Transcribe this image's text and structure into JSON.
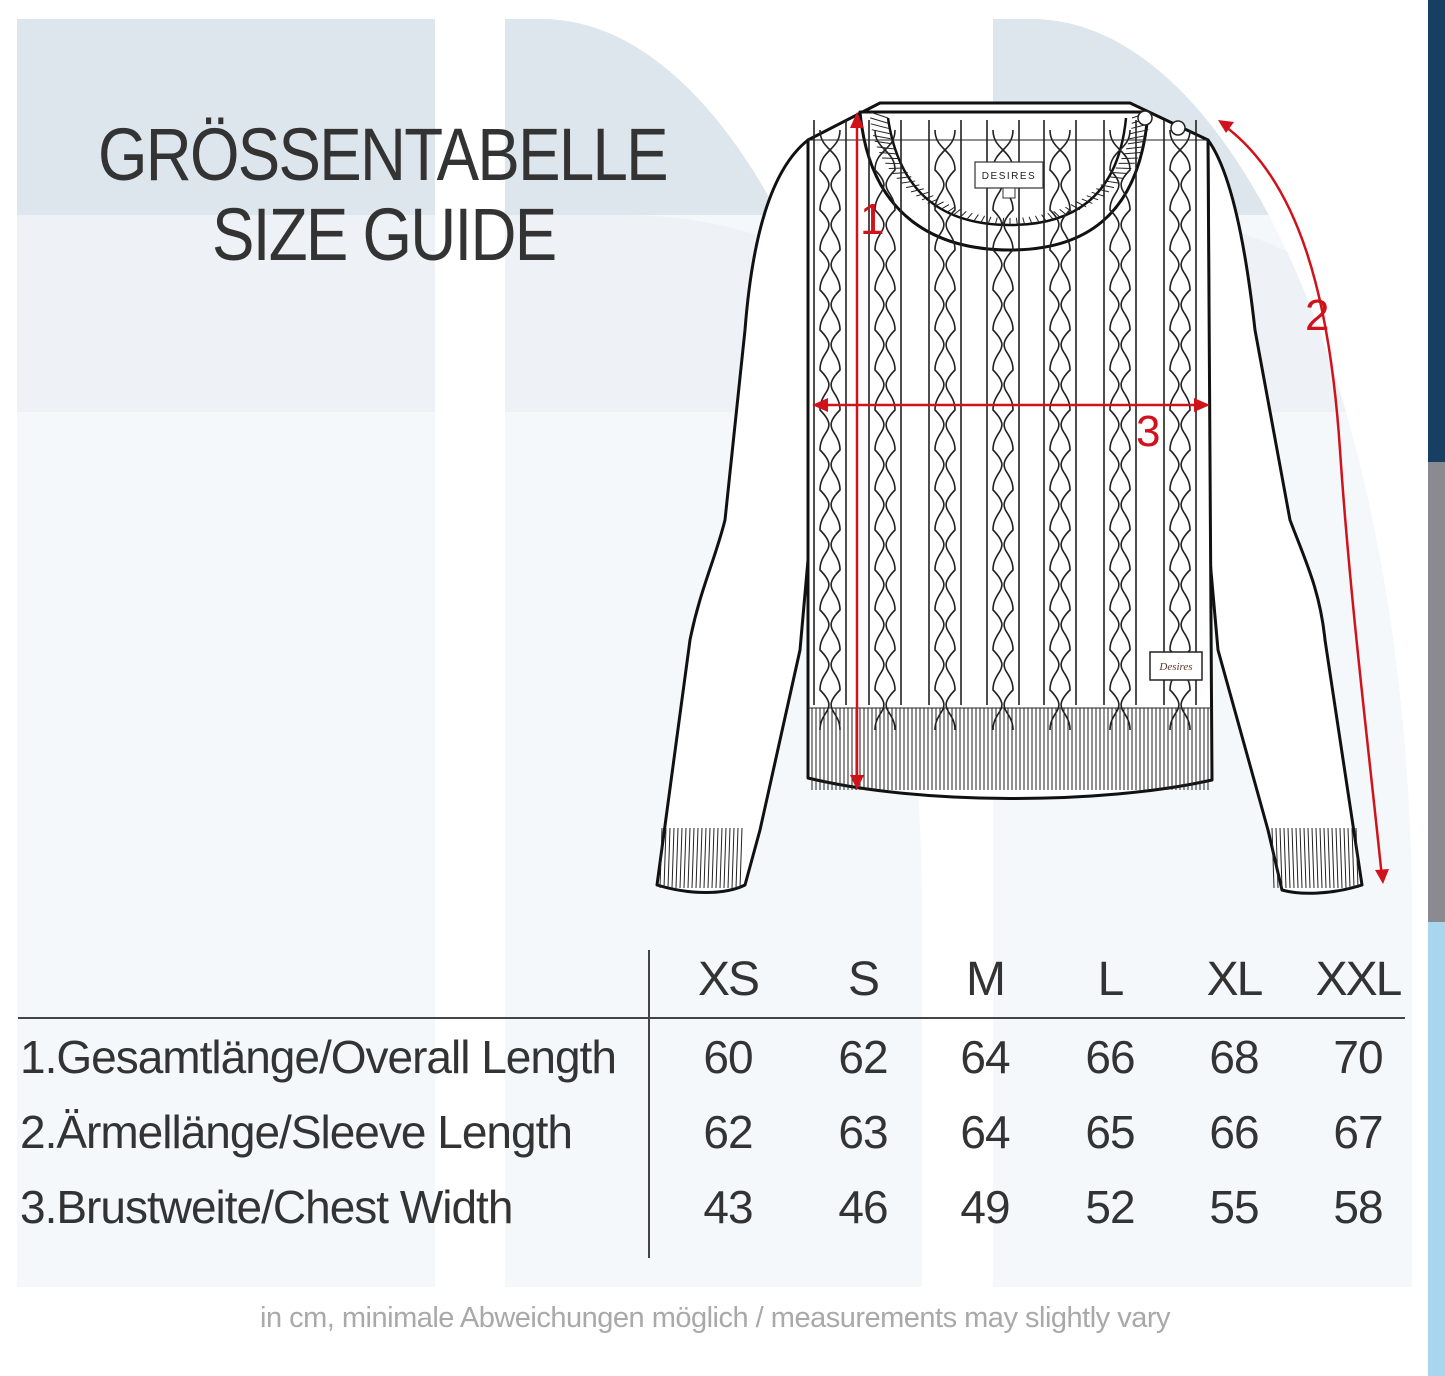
{
  "title": {
    "line1": "GRÖSSENTABELLE",
    "line2": "SIZE GUIDE"
  },
  "illustration": {
    "neck_label": "DESIRES",
    "logo_patch": "Desires",
    "measure_labels": [
      "1",
      "2",
      "3"
    ],
    "measure_color": "#d0121b"
  },
  "table": {
    "sizes": [
      "XS",
      "S",
      "M",
      "L",
      "XL",
      "XXL"
    ],
    "rows": [
      {
        "label": "1.Gesamtlänge/Overall Length",
        "values": [
          "60",
          "62",
          "64",
          "66",
          "68",
          "70"
        ]
      },
      {
        "label": "2.Ärmellänge/Sleeve Length",
        "values": [
          "62",
          "63",
          "64",
          "65",
          "66",
          "67"
        ]
      },
      {
        "label": "3.Brustweite/Chest Width",
        "values": [
          "43",
          "46",
          "49",
          "52",
          "55",
          "58"
        ]
      }
    ]
  },
  "footer": "in cm, minimale Abweichungen möglich / measurements may slightly vary",
  "colors": {
    "strip_top": "#173f63",
    "strip_mid": "#8a8a90",
    "strip_bottom": "#a9d6ef",
    "band_top": "#dde6ec",
    "band_mid": "#eef1f5",
    "band_bottom": "#f4f8fb"
  }
}
